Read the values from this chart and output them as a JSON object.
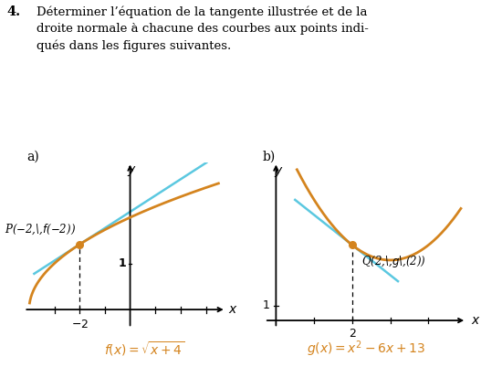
{
  "title_number": "4.",
  "title_text": "Déterminer l’équation de la tangente illustrée et de la\ndroite normale à chacune des courbes aux points indi-\nqués dans les figures suivantes.",
  "panel_a_label": "a)",
  "panel_b_label": "b)",
  "curve_color": "#d4841e",
  "tangent_color": "#5bc8e0",
  "point_color": "#d4841e",
  "background_color": "#ffffff",
  "text_color": "#000000",
  "func_label_color": "#d4841e",
  "panel_a": {
    "xlim": [
      -4.2,
      3.8
    ],
    "ylim": [
      -0.4,
      3.2
    ],
    "x_ticks": [
      -3,
      -2,
      -1,
      1,
      2,
      3
    ],
    "x_tick_labeled": [
      -2
    ],
    "y_tick_labeled": [
      1
    ],
    "point_x": -2,
    "tangent_xmin": -3.8,
    "tangent_xmax": 3.5
  },
  "panel_b": {
    "xlim": [
      -0.3,
      5.0
    ],
    "ylim": [
      -0.5,
      10.5
    ],
    "x_ticks": [
      1,
      2,
      3,
      4
    ],
    "x_tick_labeled": [
      2
    ],
    "y_tick_labeled": [
      1
    ],
    "point_x": 2,
    "tangent_xmin": 0.5,
    "tangent_xmax": 3.2
  }
}
